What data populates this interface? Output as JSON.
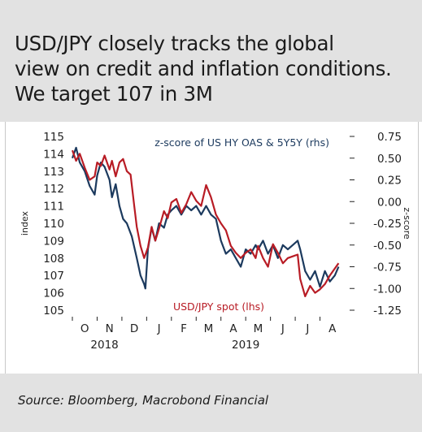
{
  "header": {
    "title_lines": [
      "USD/JPY closely tracks the global",
      "view on credit and inflation conditions.",
      "We target 107 in 3M"
    ]
  },
  "footer": {
    "source": "Source: Bloomberg, Macrobond Financial"
  },
  "chart_data": {
    "type": "line",
    "xlabel": "",
    "ylabel": "index",
    "y2label": "z-score",
    "ylim": [
      105,
      115
    ],
    "y2lim": [
      -1.25,
      0.75
    ],
    "y2_inverted": true,
    "yticks": [
      "115",
      "114",
      "113",
      "112",
      "111",
      "110",
      "109",
      "108",
      "107",
      "106",
      "105"
    ],
    "y2ticks": [
      "0.75",
      "0.50",
      "0.25",
      "0.00",
      "-0.25",
      "-0.50",
      "-0.75",
      "-1.00",
      "-1.25"
    ],
    "month_ticks": [
      "O",
      "N",
      "D",
      "J",
      "F",
      "M",
      "A",
      "M",
      "J",
      "J",
      "A"
    ],
    "year_labels": [
      "2018",
      "2019"
    ],
    "grid": false,
    "series": [
      {
        "name": "z-score of US HY OAS & 5Y5Y (rhs)",
        "axis": "right",
        "color": "#1c3a5e",
        "x": [
          0.0,
          0.15,
          0.3,
          0.5,
          0.7,
          0.9,
          1.0,
          1.15,
          1.3,
          1.5,
          1.6,
          1.75,
          1.9,
          2.05,
          2.2,
          2.4,
          2.6,
          2.75,
          2.9,
          2.95,
          3.05,
          3.2,
          3.35,
          3.5,
          3.7,
          3.85,
          4.0,
          4.2,
          4.4,
          4.6,
          4.8,
          5.0,
          5.2,
          5.4,
          5.6,
          5.8,
          6.0,
          6.2,
          6.4,
          6.6,
          6.8,
          7.0,
          7.2,
          7.4,
          7.5,
          7.7,
          7.9,
          8.1,
          8.3,
          8.5,
          8.7,
          8.9,
          9.1,
          9.2,
          9.4,
          9.6,
          9.8,
          10.0,
          10.2,
          10.4,
          10.6,
          10.75
        ],
        "values": [
          0.5,
          0.62,
          0.45,
          0.35,
          0.18,
          0.08,
          0.3,
          0.45,
          0.4,
          0.25,
          0.05,
          0.2,
          -0.05,
          -0.2,
          -0.25,
          -0.4,
          -0.65,
          -0.85,
          -0.95,
          -1.0,
          -0.55,
          -0.3,
          -0.45,
          -0.25,
          -0.3,
          -0.15,
          -0.1,
          -0.05,
          -0.15,
          -0.05,
          -0.1,
          -0.05,
          -0.15,
          -0.05,
          -0.15,
          -0.2,
          -0.45,
          -0.6,
          -0.55,
          -0.65,
          -0.75,
          -0.55,
          -0.6,
          -0.5,
          -0.55,
          -0.45,
          -0.6,
          -0.5,
          -0.65,
          -0.5,
          -0.55,
          -0.5,
          -0.45,
          -0.55,
          -0.8,
          -0.9,
          -0.8,
          -0.98,
          -0.8,
          -0.92,
          -0.85,
          -0.75
        ]
      },
      {
        "name": "USD/JPY spot (lhs)",
        "axis": "left",
        "color": "#b81c25",
        "x": [
          0.0,
          0.15,
          0.3,
          0.5,
          0.7,
          0.9,
          1.0,
          1.15,
          1.3,
          1.5,
          1.6,
          1.75,
          1.9,
          2.05,
          2.2,
          2.35,
          2.5,
          2.6,
          2.75,
          2.9,
          3.05,
          3.2,
          3.35,
          3.5,
          3.7,
          3.85,
          4.0,
          4.2,
          4.4,
          4.6,
          4.8,
          5.0,
          5.2,
          5.4,
          5.6,
          5.8,
          6.0,
          6.2,
          6.4,
          6.6,
          6.8,
          7.0,
          7.2,
          7.4,
          7.5,
          7.7,
          7.9,
          8.1,
          8.3,
          8.5,
          8.7,
          8.9,
          9.1,
          9.2,
          9.4,
          9.6,
          9.8,
          10.0,
          10.2,
          10.4,
          10.6,
          10.75
        ],
        "values": [
          114.2,
          113.6,
          114.0,
          113.2,
          112.5,
          112.7,
          113.5,
          113.3,
          113.9,
          113.1,
          113.6,
          112.7,
          113.5,
          113.7,
          113.0,
          112.8,
          111.0,
          109.8,
          108.7,
          108.0,
          108.6,
          109.8,
          109.0,
          109.7,
          110.7,
          110.3,
          111.2,
          111.4,
          110.6,
          111.1,
          111.8,
          111.3,
          111.0,
          112.2,
          111.5,
          110.5,
          110.0,
          109.6,
          108.7,
          108.3,
          108.0,
          108.3,
          108.5,
          108.0,
          108.7,
          108.0,
          107.5,
          108.8,
          108.3,
          107.7,
          108.0,
          108.1,
          108.2,
          106.8,
          105.8,
          106.4,
          106.0,
          106.2,
          106.5,
          107.0,
          107.4,
          107.7
        ]
      }
    ]
  }
}
